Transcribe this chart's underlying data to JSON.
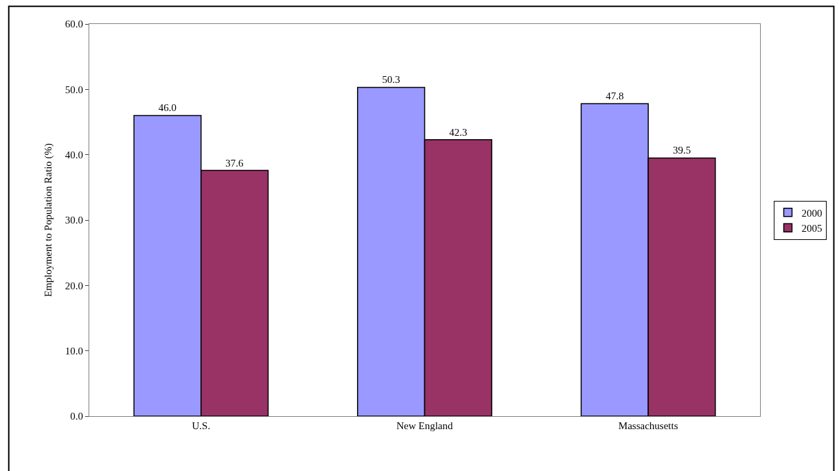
{
  "chart_data": {
    "type": "bar",
    "ylabel": "Employment to Population Ratio (%)",
    "categories": [
      "U.S.",
      "New England",
      "Massachusetts"
    ],
    "series": [
      {
        "name": "2000",
        "color": "#9999ff",
        "values": [
          46.0,
          50.3,
          47.8
        ],
        "value_labels": [
          "46.0",
          "50.3",
          "47.8"
        ]
      },
      {
        "name": "2005",
        "color": "#993366",
        "values": [
          37.6,
          42.3,
          39.5
        ],
        "value_labels": [
          "37.6",
          "42.3",
          "39.5"
        ]
      }
    ],
    "ylim": [
      0,
      60
    ],
    "yticks": [
      {
        "value": 0,
        "label": "0.0"
      },
      {
        "value": 10,
        "label": "10.0"
      },
      {
        "value": 20,
        "label": "20.0"
      },
      {
        "value": 30,
        "label": "30.0"
      },
      {
        "value": 40,
        "label": "40.0"
      },
      {
        "value": 50,
        "label": "50.0"
      },
      {
        "value": 60,
        "label": "60.0"
      }
    ],
    "legend": "right"
  }
}
